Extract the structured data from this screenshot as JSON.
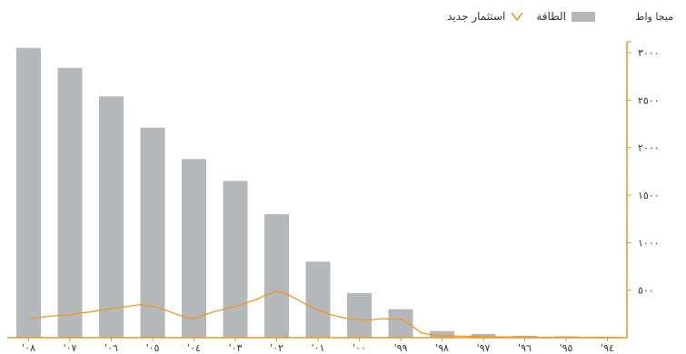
{
  "legend": {
    "bar_label": "الطاقة",
    "line_label": "استثمار جديد"
  },
  "unit_label": "ميجا واط",
  "colors": {
    "bar": "#b5b8bb",
    "line": "#f0961e",
    "axis": "#f0961e"
  },
  "chart_data": {
    "type": "bar",
    "categories": [
      "'٠٨",
      "'٠٧",
      "'٠٦",
      "'٠٥",
      "'٠٤",
      "'٠٣",
      "'٠٢",
      "'٠١",
      "'٠٠",
      "'٩٩",
      "'٩٨",
      "'٩٧",
      "'٩٦",
      "'٩٥",
      "'٩٤"
    ],
    "x_direction": "right-to-left",
    "y_axis_position": "right",
    "ylim": [
      0,
      3000
    ],
    "y_ticks": [
      500,
      1000,
      1500,
      2000,
      2500,
      3000
    ],
    "y_tick_labels": [
      "٥٠٠",
      "١٠٠٠",
      "١٥٠٠",
      "٢٠٠٠",
      "٢٥٠٠",
      "٣٠٠٠"
    ],
    "series": [
      {
        "name": "الطاقة",
        "type": "bar",
        "values": [
          3050,
          2840,
          2540,
          2210,
          1880,
          1650,
          1300,
          800,
          470,
          300,
          70,
          40,
          20,
          15,
          10
        ]
      },
      {
        "name": "استثمار جديد",
        "type": "line",
        "x": [
          0,
          0.25,
          0.5,
          0.75,
          1,
          1.25,
          1.5,
          1.75,
          2,
          2.25,
          2.5,
          2.75,
          3,
          3.25,
          3.5,
          3.75,
          4,
          4.25,
          4.5,
          4.75,
          5,
          5.25,
          5.5,
          5.75,
          6,
          6.25,
          6.5,
          6.75,
          7,
          7.25,
          7.5,
          7.75,
          8,
          8.25,
          8.5,
          8.75,
          9,
          9.25,
          9.5,
          9.75,
          10,
          10.25,
          10.5,
          10.75,
          11,
          11.25,
          11.5,
          11.75,
          12,
          12.25,
          12.5,
          12.75,
          13,
          13.25,
          13.5,
          13.75,
          14
        ],
        "values": [
          200,
          210,
          225,
          235,
          240,
          260,
          270,
          290,
          310,
          320,
          335,
          350,
          330,
          300,
          260,
          220,
          200,
          240,
          275,
          300,
          330,
          365,
          400,
          450,
          490,
          460,
          400,
          340,
          290,
          250,
          220,
          200,
          190,
          185,
          200,
          195,
          200,
          130,
          50,
          30,
          20,
          18,
          15,
          12,
          10,
          8,
          8,
          6,
          5,
          5,
          4,
          4,
          3,
          3,
          2,
          2,
          2
        ]
      }
    ]
  }
}
